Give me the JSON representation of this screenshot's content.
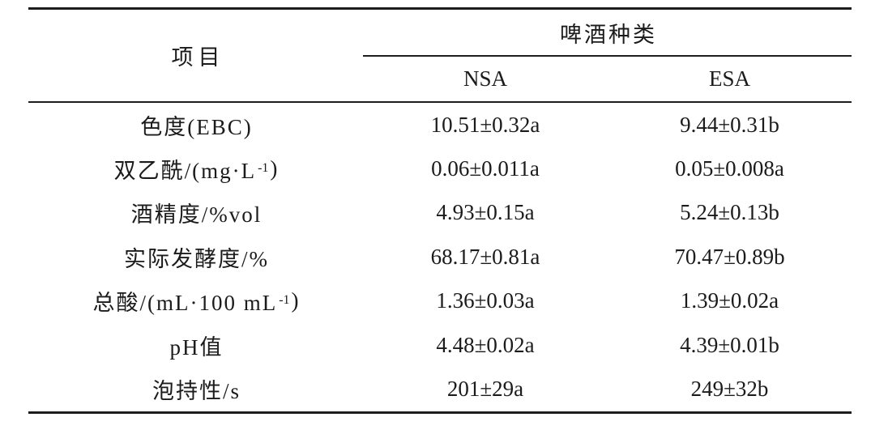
{
  "table": {
    "header": {
      "item_col": "项目",
      "group": "啤酒种类",
      "col_nsa": "NSA",
      "col_esa": "ESA"
    },
    "rows": [
      {
        "label": {
          "pre": "色度(EBC)",
          "sup": "",
          "post": ""
        },
        "nsa": "10.51±0.32a",
        "esa": "9.44±0.31b"
      },
      {
        "label": {
          "pre": "双乙酰/(mg·L",
          "sup": "-1",
          "post": ")"
        },
        "nsa": "0.06±0.011a",
        "esa": "0.05±0.008a"
      },
      {
        "label": {
          "pre": "酒精度/%vol",
          "sup": "",
          "post": ""
        },
        "nsa": "4.93±0.15a",
        "esa": "5.24±0.13b"
      },
      {
        "label": {
          "pre": "实际发酵度/%",
          "sup": "",
          "post": ""
        },
        "nsa": "68.17±0.81a",
        "esa": "70.47±0.89b"
      },
      {
        "label": {
          "pre": "总酸/(mL·100 mL",
          "sup": "-1",
          "post": ")"
        },
        "nsa": "1.36±0.03a",
        "esa": "1.39±0.02a"
      },
      {
        "label": {
          "pre": "pH值",
          "sup": "",
          "post": ""
        },
        "nsa": "4.48±0.02a",
        "esa": "4.39±0.01b"
      },
      {
        "label": {
          "pre": "泡持性/s",
          "sup": "",
          "post": ""
        },
        "nsa": "201±29a",
        "esa": "249±32b"
      }
    ],
    "colors": {
      "text": "#1b1b1b",
      "rule": "#1d1d1d",
      "background": "#ffffff"
    }
  }
}
